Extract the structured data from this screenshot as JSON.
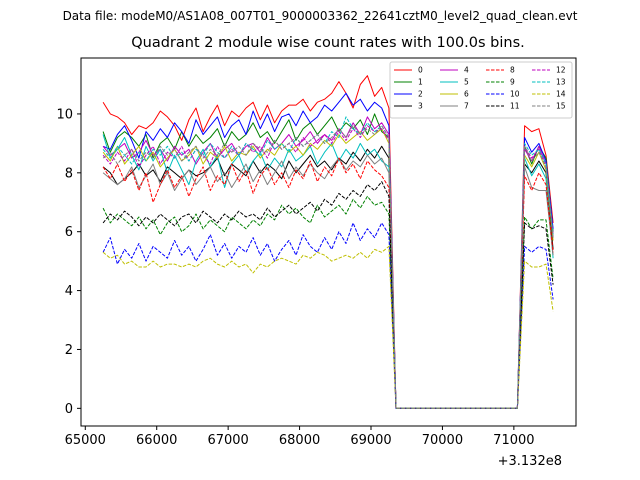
{
  "chart_data": {
    "type": "line",
    "suptitle": "Data file: modeM0/AS1A08_007T01_9000003362_22641cztM0_level2_quad_clean.evt",
    "title": "Quadrant 2 module wise count rates with 100.0s bins.",
    "xlabel": "",
    "ylabel": "",
    "x_offset_label": "+3.132e8",
    "xlim": [
      64940,
      71870
    ],
    "ylim": [
      -0.6,
      11.9
    ],
    "x_ticks": [
      65000,
      66000,
      67000,
      68000,
      69000,
      70000,
      71000
    ],
    "y_ticks": [
      0,
      2,
      4,
      6,
      8,
      10
    ],
    "grid": false,
    "legend_position": "upper-right",
    "legend_columns": 4,
    "x": [
      65250,
      65350,
      65450,
      65550,
      65650,
      65750,
      65850,
      65950,
      66050,
      66150,
      66250,
      66350,
      66450,
      66550,
      66650,
      66750,
      66850,
      66950,
      67050,
      67150,
      67250,
      67350,
      67450,
      67550,
      67650,
      67750,
      67850,
      67950,
      68050,
      68150,
      68250,
      68350,
      68450,
      68550,
      68650,
      68750,
      68850,
      68950,
      69050,
      69150,
      69250,
      69350,
      69450,
      69550,
      69650,
      69750,
      69850,
      69950,
      70050,
      70150,
      70250,
      70350,
      70450,
      70550,
      70650,
      70750,
      70850,
      70950,
      71050,
      71150,
      71250,
      71350,
      71450,
      71550
    ],
    "series": [
      {
        "name": "0",
        "color": "#ff0000",
        "dash": "solid",
        "values": [
          10.4,
          10.0,
          9.9,
          9.7,
          9.3,
          9.6,
          9.5,
          9.7,
          10.1,
          9.9,
          9.6,
          9.1,
          9.8,
          10.2,
          9.4,
          9.9,
          10.3,
          9.6,
          10.1,
          9.9,
          10.2,
          10.4,
          9.8,
          10.3,
          9.7,
          10.1,
          10.3,
          10.3,
          10.5,
          10.1,
          10.4,
          10.5,
          10.7,
          11.1,
          10.7,
          10.2,
          11.0,
          11.3,
          10.6,
          10.9,
          10.2,
          0.0,
          0.0,
          0.0,
          0.0,
          0.0,
          0.0,
          0.0,
          0.0,
          0.0,
          0.0,
          0.0,
          0.0,
          0.0,
          0.0,
          0.0,
          0.0,
          0.0,
          0.0,
          9.6,
          9.4,
          9.5,
          8.6,
          6.3
        ]
      },
      {
        "name": "1",
        "color": "#008000",
        "dash": "solid",
        "values": [
          9.4,
          8.7,
          9.2,
          9.4,
          9.2,
          8.9,
          9.3,
          8.5,
          9.0,
          9.2,
          8.8,
          9.4,
          8.9,
          9.3,
          9.0,
          9.2,
          9.5,
          8.9,
          9.4,
          9.1,
          9.3,
          9.7,
          9.2,
          9.4,
          9.0,
          9.4,
          9.8,
          9.1,
          9.5,
          9.7,
          9.3,
          9.6,
          9.9,
          9.4,
          9.7,
          9.5,
          9.8,
          9.3,
          10.0,
          9.4,
          9.2,
          0.0,
          0.0,
          0.0,
          0.0,
          0.0,
          0.0,
          0.0,
          0.0,
          0.0,
          0.0,
          0.0,
          0.0,
          0.0,
          0.0,
          0.0,
          0.0,
          0.0,
          0.0,
          8.9,
          8.3,
          8.9,
          8.5,
          6.0
        ]
      },
      {
        "name": "2",
        "color": "#0000ff",
        "dash": "solid",
        "values": [
          8.9,
          8.8,
          9.3,
          9.6,
          9.1,
          8.5,
          9.4,
          9.1,
          9.5,
          9.2,
          9.7,
          9.4,
          9.0,
          9.8,
          9.3,
          9.6,
          9.9,
          9.2,
          9.6,
          9.8,
          9.3,
          10.1,
          9.5,
          10.0,
          9.4,
          9.9,
          10.0,
          9.6,
          10.1,
          9.7,
          9.9,
          10.3,
          10.1,
          10.4,
          10.7,
          10.3,
          10.5,
          10.1,
          10.4,
          10.2,
          9.6,
          0.0,
          0.0,
          0.0,
          0.0,
          0.0,
          0.0,
          0.0,
          0.0,
          0.0,
          0.0,
          0.0,
          0.0,
          0.0,
          0.0,
          0.0,
          0.0,
          0.0,
          0.0,
          9.2,
          8.7,
          9.0,
          8.4,
          6.1
        ]
      },
      {
        "name": "3",
        "color": "#000000",
        "dash": "solid",
        "values": [
          8.2,
          8.0,
          7.6,
          7.8,
          8.0,
          8.3,
          7.9,
          8.1,
          7.7,
          8.2,
          8.0,
          7.8,
          8.1,
          7.9,
          8.0,
          8.2,
          8.5,
          7.9,
          8.3,
          8.1,
          7.9,
          8.4,
          8.0,
          8.3,
          8.1,
          7.8,
          8.4,
          8.0,
          8.3,
          8.6,
          8.2,
          8.4,
          8.1,
          8.5,
          8.3,
          8.7,
          8.4,
          8.8,
          8.5,
          8.9,
          8.5,
          0.0,
          0.0,
          0.0,
          0.0,
          0.0,
          0.0,
          0.0,
          0.0,
          0.0,
          0.0,
          0.0,
          0.0,
          0.0,
          0.0,
          0.0,
          0.0,
          0.0,
          0.0,
          8.3,
          8.0,
          8.4,
          8.0,
          5.4
        ]
      },
      {
        "name": "4",
        "color": "#bf00bf",
        "dash": "solid",
        "values": [
          8.9,
          8.6,
          8.8,
          9.0,
          8.5,
          8.7,
          9.1,
          8.6,
          8.8,
          8.4,
          8.9,
          8.6,
          8.8,
          8.3,
          8.7,
          9.0,
          8.5,
          8.8,
          9.0,
          8.6,
          8.9,
          9.0,
          8.7,
          9.2,
          8.8,
          9.0,
          9.3,
          8.9,
          9.1,
          9.4,
          9.0,
          9.3,
          9.1,
          9.5,
          9.2,
          9.7,
          9.3,
          9.9,
          9.5,
          9.7,
          9.3,
          0.0,
          0.0,
          0.0,
          0.0,
          0.0,
          0.0,
          0.0,
          0.0,
          0.0,
          0.0,
          0.0,
          0.0,
          0.0,
          0.0,
          0.0,
          0.0,
          0.0,
          0.0,
          8.8,
          8.4,
          8.9,
          8.3,
          5.9
        ]
      },
      {
        "name": "5",
        "color": "#00bfbf",
        "dash": "solid",
        "values": [
          9.3,
          8.5,
          8.8,
          9.2,
          8.6,
          8.1,
          8.9,
          8.4,
          8.8,
          8.0,
          8.6,
          8.1,
          7.6,
          8.4,
          8.8,
          8.2,
          8.6,
          7.5,
          8.3,
          8.6,
          8.0,
          8.4,
          8.7,
          8.1,
          8.5,
          8.2,
          8.8,
          8.4,
          8.6,
          8.9,
          8.3,
          8.7,
          9.0,
          8.4,
          8.8,
          8.5,
          9.0,
          8.6,
          8.8,
          8.4,
          8.2,
          0.0,
          0.0,
          0.0,
          0.0,
          0.0,
          0.0,
          0.0,
          0.0,
          0.0,
          0.0,
          0.0,
          0.0,
          0.0,
          0.0,
          0.0,
          0.0,
          0.0,
          0.0,
          8.5,
          7.9,
          8.3,
          7.8,
          5.1
        ]
      },
      {
        "name": "6",
        "color": "#bfbf00",
        "dash": "solid",
        "values": [
          8.7,
          8.4,
          8.9,
          8.3,
          8.6,
          8.9,
          8.4,
          8.7,
          8.2,
          8.5,
          8.8,
          8.4,
          8.6,
          8.9,
          8.3,
          8.7,
          8.5,
          8.9,
          8.4,
          8.7,
          8.6,
          8.9,
          8.5,
          8.8,
          8.6,
          9.0,
          8.7,
          8.9,
          8.6,
          9.0,
          8.8,
          9.1,
          8.9,
          9.3,
          9.0,
          9.2,
          9.4,
          9.1,
          9.3,
          9.5,
          9.0,
          0.0,
          0.0,
          0.0,
          0.0,
          0.0,
          0.0,
          0.0,
          0.0,
          0.0,
          0.0,
          0.0,
          0.0,
          0.0,
          0.0,
          0.0,
          0.0,
          0.0,
          0.0,
          8.6,
          8.2,
          8.7,
          8.1,
          5.7
        ]
      },
      {
        "name": "7",
        "color": "#808080",
        "dash": "solid",
        "values": [
          8.0,
          7.8,
          7.6,
          7.8,
          8.2,
          7.5,
          7.9,
          8.3,
          7.6,
          8.0,
          7.4,
          7.8,
          8.1,
          7.6,
          7.9,
          8.2,
          7.7,
          8.0,
          7.5,
          7.9,
          8.3,
          7.7,
          8.1,
          7.6,
          8.0,
          8.4,
          7.8,
          8.2,
          7.9,
          8.3,
          8.0,
          7.8,
          8.2,
          8.5,
          8.1,
          8.4,
          8.2,
          8.6,
          8.3,
          8.5,
          8.0,
          0.0,
          0.0,
          0.0,
          0.0,
          0.0,
          0.0,
          0.0,
          0.0,
          0.0,
          0.0,
          0.0,
          0.0,
          0.0,
          0.0,
          0.0,
          0.0,
          0.0,
          0.0,
          8.2,
          7.5,
          7.4,
          7.4,
          5.2
        ]
      },
      {
        "name": "8",
        "color": "#ff0000",
        "dash": "dashed",
        "values": [
          8.2,
          7.8,
          8.3,
          7.7,
          8.1,
          7.4,
          8.0,
          7.0,
          7.6,
          8.1,
          7.5,
          7.9,
          7.2,
          7.8,
          8.2,
          7.4,
          7.9,
          7.6,
          8.3,
          7.7,
          8.1,
          7.3,
          7.9,
          8.2,
          7.6,
          8.0,
          7.5,
          8.1,
          7.8,
          8.4,
          7.7,
          8.2,
          7.9,
          8.5,
          8.0,
          8.3,
          7.8,
          8.4,
          8.1,
          7.9,
          7.5,
          0.0,
          0.0,
          0.0,
          0.0,
          0.0,
          0.0,
          0.0,
          0.0,
          0.0,
          0.0,
          0.0,
          0.0,
          0.0,
          0.0,
          0.0,
          0.0,
          0.0,
          0.0,
          7.9,
          7.4,
          8.0,
          7.6,
          5.3
        ]
      },
      {
        "name": "9",
        "color": "#008000",
        "dash": "dashed",
        "values": [
          6.8,
          6.3,
          6.6,
          6.4,
          6.2,
          6.5,
          6.1,
          6.4,
          5.9,
          6.3,
          6.5,
          6.0,
          6.2,
          6.6,
          6.1,
          6.4,
          6.2,
          6.0,
          6.5,
          6.3,
          6.1,
          6.4,
          6.2,
          6.6,
          6.4,
          6.9,
          6.6,
          6.8,
          6.5,
          6.3,
          6.9,
          6.5,
          6.7,
          6.9,
          6.6,
          7.1,
          6.8,
          7.2,
          6.9,
          7.0,
          6.6,
          0.0,
          0.0,
          0.0,
          0.0,
          0.0,
          0.0,
          0.0,
          0.0,
          0.0,
          0.0,
          0.0,
          0.0,
          0.0,
          0.0,
          0.0,
          0.0,
          0.0,
          0.0,
          6.5,
          6.1,
          6.4,
          6.4,
          4.4
        ]
      },
      {
        "name": "10",
        "color": "#0000ff",
        "dash": "dashed",
        "values": [
          5.3,
          5.8,
          4.9,
          5.4,
          5.1,
          5.6,
          5.0,
          5.5,
          5.3,
          5.1,
          5.7,
          5.2,
          5.5,
          5.0,
          5.4,
          5.9,
          5.2,
          5.6,
          5.1,
          5.5,
          5.3,
          5.8,
          5.2,
          5.6,
          5.0,
          5.4,
          5.7,
          5.2,
          5.9,
          5.5,
          5.3,
          5.8,
          5.4,
          6.0,
          5.6,
          6.3,
          5.7,
          6.1,
          5.8,
          6.3,
          5.9,
          0.0,
          0.0,
          0.0,
          0.0,
          0.0,
          0.0,
          0.0,
          0.0,
          0.0,
          0.0,
          0.0,
          0.0,
          0.0,
          0.0,
          0.0,
          0.0,
          0.0,
          0.0,
          5.5,
          5.3,
          5.5,
          5.4,
          3.7
        ]
      },
      {
        "name": "11",
        "color": "#000000",
        "dash": "dashed",
        "values": [
          6.3,
          6.6,
          6.4,
          6.7,
          6.5,
          6.2,
          6.5,
          6.3,
          6.6,
          6.4,
          6.2,
          6.5,
          6.6,
          6.3,
          6.7,
          6.5,
          6.3,
          6.6,
          6.4,
          6.7,
          6.5,
          6.6,
          6.4,
          6.8,
          6.5,
          6.7,
          6.9,
          6.6,
          6.8,
          7.0,
          6.7,
          7.1,
          6.9,
          7.3,
          7.1,
          7.4,
          7.2,
          7.6,
          7.4,
          7.7,
          7.2,
          0.0,
          0.0,
          0.0,
          0.0,
          0.0,
          0.0,
          0.0,
          0.0,
          0.0,
          0.0,
          0.0,
          0.0,
          0.0,
          0.0,
          0.0,
          0.0,
          0.0,
          0.0,
          6.3,
          6.1,
          6.2,
          6.1,
          4.2
        ]
      },
      {
        "name": "12",
        "color": "#bf00bf",
        "dash": "dashed",
        "values": [
          8.6,
          8.3,
          8.7,
          8.4,
          8.8,
          8.2,
          8.6,
          8.9,
          8.3,
          8.7,
          8.5,
          8.9,
          8.4,
          8.8,
          8.6,
          8.3,
          8.9,
          8.5,
          8.8,
          8.6,
          9.0,
          8.7,
          8.9,
          8.5,
          9.1,
          8.8,
          9.0,
          8.7,
          9.2,
          8.9,
          9.1,
          9.3,
          9.0,
          9.4,
          9.1,
          9.5,
          9.2,
          9.6,
          9.4,
          9.5,
          9.1,
          0.0,
          0.0,
          0.0,
          0.0,
          0.0,
          0.0,
          0.0,
          0.0,
          0.0,
          0.0,
          0.0,
          0.0,
          0.0,
          0.0,
          0.0,
          0.0,
          0.0,
          0.0,
          8.9,
          8.5,
          8.8,
          8.2,
          5.8
        ]
      },
      {
        "name": "13",
        "color": "#00bfbf",
        "dash": "dashed",
        "values": [
          8.8,
          8.5,
          8.9,
          8.6,
          8.3,
          8.7,
          8.4,
          8.8,
          8.6,
          8.9,
          8.5,
          8.7,
          8.4,
          8.8,
          8.6,
          9.0,
          8.7,
          8.5,
          8.9,
          8.6,
          9.0,
          8.8,
          8.6,
          9.1,
          8.8,
          9.0,
          8.7,
          9.2,
          8.9,
          9.1,
          9.3,
          9.0,
          9.4,
          9.2,
          9.9,
          9.5,
          9.3,
          9.7,
          9.4,
          9.6,
          9.2,
          0.0,
          0.0,
          0.0,
          0.0,
          0.0,
          0.0,
          0.0,
          0.0,
          0.0,
          0.0,
          0.0,
          0.0,
          0.0,
          0.0,
          0.0,
          0.0,
          0.0,
          0.0,
          9.0,
          8.6,
          8.8,
          8.3,
          5.9
        ]
      },
      {
        "name": "14",
        "color": "#bfbf00",
        "dash": "dashed",
        "values": [
          5.3,
          5.1,
          5.2,
          4.9,
          5.0,
          4.8,
          4.8,
          5.0,
          4.8,
          4.9,
          4.9,
          4.8,
          4.9,
          4.8,
          5.0,
          5.1,
          4.9,
          4.8,
          5.0,
          4.8,
          4.9,
          4.6,
          4.9,
          4.8,
          5.0,
          5.1,
          5.0,
          4.9,
          5.2,
          5.1,
          5.3,
          5.2,
          5.0,
          5.1,
          5.2,
          5.1,
          5.3,
          5.1,
          5.4,
          5.3,
          5.5,
          0.0,
          0.0,
          0.0,
          0.0,
          0.0,
          0.0,
          0.0,
          0.0,
          0.0,
          0.0,
          0.0,
          0.0,
          0.0,
          0.0,
          0.0,
          0.0,
          0.0,
          0.0,
          5.0,
          4.8,
          4.8,
          4.9,
          3.3
        ]
      },
      {
        "name": "15",
        "color": "#808080",
        "dash": "dashed",
        "values": [
          8.5,
          8.7,
          8.3,
          8.6,
          8.8,
          8.4,
          8.7,
          8.5,
          8.9,
          8.6,
          8.8,
          8.4,
          8.7,
          8.9,
          8.5,
          8.8,
          8.6,
          9.0,
          8.7,
          8.9,
          8.6,
          9.0,
          8.8,
          8.7,
          9.1,
          8.8,
          9.0,
          9.2,
          8.9,
          9.1,
          9.3,
          9.0,
          9.2,
          9.5,
          9.2,
          9.6,
          9.3,
          9.5,
          9.3,
          9.6,
          9.2,
          0.0,
          0.0,
          0.0,
          0.0,
          0.0,
          0.0,
          0.0,
          0.0,
          0.0,
          0.0,
          0.0,
          0.0,
          0.0,
          0.0,
          0.0,
          0.0,
          0.0,
          0.0,
          8.9,
          8.4,
          8.7,
          8.2,
          5.8
        ]
      }
    ]
  }
}
